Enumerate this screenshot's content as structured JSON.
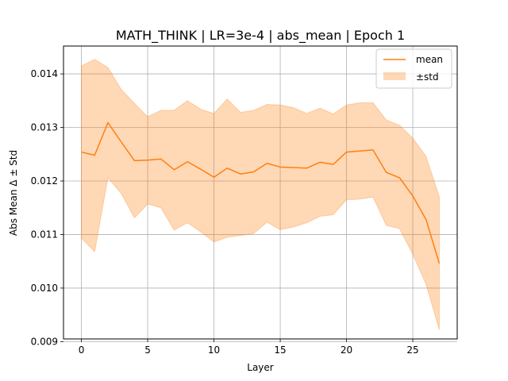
{
  "chart_data": {
    "type": "line",
    "title": "MATH_THINK | LR=3e-4 | abs_mean | Epoch 1",
    "xlabel": "Layer",
    "ylabel": "Abs Mean Δ ± Std",
    "xlim": [
      -1.35,
      28.35
    ],
    "ylim": [
      0.00905,
      0.01452
    ],
    "grid": true,
    "legend_position": "top-right",
    "x_ticks": [
      0,
      5,
      10,
      15,
      20,
      25
    ],
    "x_tick_labels": [
      "0",
      "5",
      "10",
      "15",
      "20",
      "25"
    ],
    "y_ticks": [
      0.009,
      0.01,
      0.011,
      0.012,
      0.013,
      0.014
    ],
    "y_tick_labels": [
      "0.009",
      "0.010",
      "0.011",
      "0.012",
      "0.013",
      "0.014"
    ],
    "x": [
      0,
      1,
      2,
      3,
      4,
      5,
      6,
      7,
      8,
      9,
      10,
      11,
      12,
      13,
      14,
      15,
      16,
      17,
      18,
      19,
      20,
      21,
      22,
      23,
      24,
      25,
      26,
      27
    ],
    "series": [
      {
        "name": "mean",
        "color": "#ff7f0e",
        "values": [
          0.01254,
          0.01248,
          0.01309,
          0.01273,
          0.01238,
          0.01239,
          0.01241,
          0.01221,
          0.01236,
          0.01222,
          0.01207,
          0.01224,
          0.01213,
          0.01217,
          0.01233,
          0.01226,
          0.01225,
          0.01224,
          0.01235,
          0.01231,
          0.01254,
          0.01256,
          0.01258,
          0.01216,
          0.01206,
          0.01172,
          0.01128,
          0.01046
        ]
      },
      {
        "name": "±std",
        "type": "band",
        "color": "#ff7f0e",
        "opacity": 0.3,
        "upper": [
          0.01415,
          0.01427,
          0.01412,
          0.01371,
          0.01345,
          0.0132,
          0.01332,
          0.01332,
          0.0135,
          0.01334,
          0.01326,
          0.01353,
          0.01328,
          0.01332,
          0.01343,
          0.01342,
          0.01337,
          0.01326,
          0.01336,
          0.01325,
          0.01342,
          0.01346,
          0.01346,
          0.01314,
          0.01304,
          0.0128,
          0.01246,
          0.0117
        ],
        "lower": [
          0.01093,
          0.01068,
          0.01206,
          0.01177,
          0.01131,
          0.01157,
          0.0115,
          0.01108,
          0.01122,
          0.01105,
          0.01086,
          0.01095,
          0.01098,
          0.01102,
          0.01123,
          0.01109,
          0.01114,
          0.01122,
          0.01134,
          0.01137,
          0.01165,
          0.01166,
          0.0117,
          0.01117,
          0.01111,
          0.01063,
          0.01007,
          0.00922
        ]
      }
    ]
  }
}
